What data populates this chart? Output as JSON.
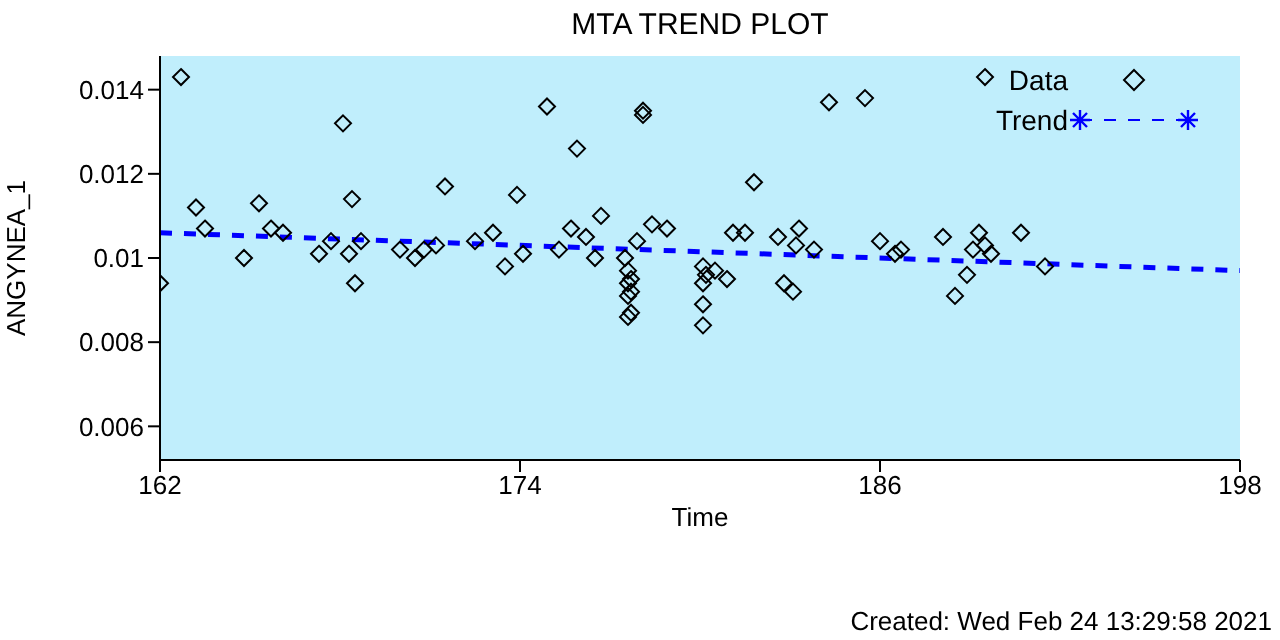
{
  "chart_data": {
    "type": "scatter",
    "title": "MTA TREND PLOT",
    "xlabel": "Time",
    "ylabel": "ANGYNEA_1",
    "annotations": [
      "Created: Wed Feb 24 13:29:58 2021"
    ],
    "xlim": [
      162,
      198
    ],
    "xticks": [
      162,
      174,
      186,
      198
    ],
    "ylim": [
      0.0052,
      0.0148
    ],
    "yticks": [
      0.006,
      0.008,
      0.01,
      0.012,
      0.014
    ],
    "grid": false,
    "legend": "top right",
    "series": [
      {
        "name": "Data",
        "color": "#000000",
        "marker": "diamond",
        "x": [
          162.0,
          162.7,
          163.2,
          163.5,
          164.8,
          165.3,
          165.7,
          166.1,
          167.3,
          167.7,
          168.1,
          168.3,
          168.4,
          168.5,
          168.7,
          170.0,
          170.5,
          170.8,
          171.2,
          171.5,
          172.5,
          173.1,
          173.5,
          173.9,
          174.1,
          174.9,
          175.3,
          175.7,
          175.9,
          176.2,
          176.5,
          176.7,
          177.5,
          177.6,
          177.7,
          177.6,
          177.7,
          177.6,
          177.7,
          177.6,
          177.9,
          178.1,
          178.1,
          178.4,
          178.9,
          180.1,
          180.1,
          180.1,
          180.1,
          180.2,
          180.5,
          180.9,
          181.1,
          181.5,
          181.8,
          182.6,
          182.8,
          183.1,
          183.2,
          183.3,
          183.8,
          184.3,
          185.5,
          186.0,
          186.5,
          186.7,
          188.1,
          188.5,
          188.9,
          189.1,
          189.3,
          189.5,
          189.7,
          189.5,
          190.7,
          191.5
        ],
        "values": [
          0.0094,
          0.0143,
          0.0112,
          0.0107,
          0.01,
          0.0113,
          0.0107,
          0.0106,
          0.0101,
          0.0104,
          0.0132,
          0.0101,
          0.0114,
          0.0094,
          0.0104,
          0.0102,
          0.01,
          0.0102,
          0.0103,
          0.0117,
          0.0104,
          0.0106,
          0.0098,
          0.0115,
          0.0101,
          0.0136,
          0.0102,
          0.0107,
          0.0126,
          0.0105,
          0.01,
          0.011,
          0.01,
          0.0097,
          0.0095,
          0.0094,
          0.0092,
          0.0091,
          0.0087,
          0.0086,
          0.0104,
          0.0135,
          0.0134,
          0.0108,
          0.0107,
          0.0098,
          0.0094,
          0.0089,
          0.0084,
          0.0096,
          0.0097,
          0.0095,
          0.0106,
          0.0106,
          0.0118,
          0.0105,
          0.0094,
          0.0092,
          0.0103,
          0.0107,
          0.0102,
          0.0137,
          0.0138,
          0.0104,
          0.0101,
          0.0102,
          0.0105,
          0.0091,
          0.0096,
          0.0102,
          0.0106,
          0.0103,
          0.0101,
          0.0143,
          0.0106,
          0.0098
        ]
      },
      {
        "name": "Trend",
        "type": "line",
        "color": "#0000ff",
        "line_style": "dashed",
        "x": [
          162,
          198
        ],
        "values": [
          0.0106,
          0.0097
        ]
      }
    ]
  }
}
